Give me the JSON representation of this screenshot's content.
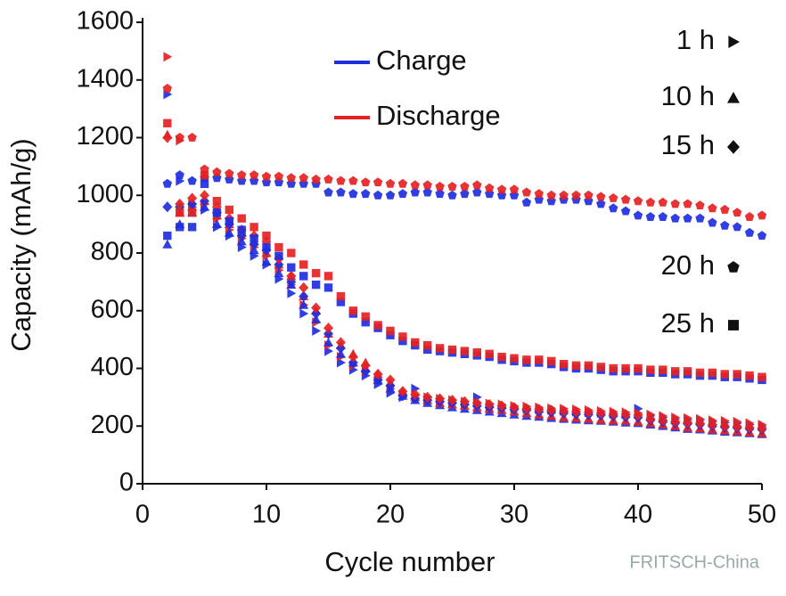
{
  "chart_data": {
    "type": "scatter",
    "xlabel": "Cycle number",
    "ylabel": "Capacity (mAh/g)",
    "xlim": [
      0,
      50
    ],
    "xticks": [
      0,
      10,
      20,
      30,
      40,
      50
    ],
    "ylim": [
      0,
      1600
    ],
    "yticks": [
      0,
      200,
      400,
      600,
      800,
      1000,
      1200,
      1400,
      1600
    ],
    "watermark": "FRITSCH-China",
    "modes": [
      {
        "name": "Charge",
        "color": "#1f2fe0"
      },
      {
        "name": "Discharge",
        "color": "#e52222"
      }
    ],
    "x": [
      2,
      3,
      4,
      5,
      6,
      7,
      8,
      9,
      10,
      11,
      12,
      13,
      14,
      15,
      16,
      17,
      18,
      19,
      20,
      21,
      22,
      23,
      24,
      25,
      26,
      27,
      28,
      29,
      30,
      31,
      32,
      33,
      34,
      35,
      36,
      37,
      38,
      39,
      40,
      41,
      42,
      43,
      44,
      45,
      46,
      47,
      48,
      49,
      50
    ],
    "series": [
      {
        "name": "1 h",
        "marker": "triangle-right",
        "values": [
          [
            1350,
            1050,
            960,
            950,
            890,
            860,
            820,
            790,
            760,
            710,
            660,
            590,
            530,
            460,
            420,
            395,
            375,
            345,
            315,
            300,
            330,
            290,
            285,
            280,
            275,
            300,
            268,
            265,
            262,
            260,
            258,
            255,
            252,
            250,
            248,
            245,
            242,
            240,
            260,
            235,
            230,
            225,
            222,
            220,
            215,
            212,
            210,
            205,
            200
          ],
          [
            1480,
            1190,
            970,
            970,
            920,
            880,
            850,
            820,
            790,
            740,
            690,
            620,
            560,
            480,
            440,
            410,
            390,
            360,
            330,
            310,
            305,
            300,
            295,
            290,
            285,
            280,
            278,
            275,
            270,
            268,
            265,
            262,
            260,
            258,
            255,
            252,
            250,
            248,
            245,
            240,
            235,
            230,
            228,
            225,
            220,
            218,
            215,
            210,
            205
          ]
        ]
      },
      {
        "name": "10 h",
        "marker": "triangle-up",
        "values": [
          [
            830,
            900,
            940,
            960,
            900,
            870,
            840,
            810,
            770,
            730,
            690,
            620,
            570,
            490,
            450,
            420,
            400,
            360,
            330,
            305,
            290,
            280,
            272,
            265,
            260,
            255,
            250,
            245,
            240,
            235,
            232,
            228,
            225,
            222,
            220,
            218,
            215,
            212,
            210,
            205,
            200,
            195,
            190,
            188,
            184,
            180,
            178,
            175,
            172
          ],
          [
            1210,
            940,
            960,
            980,
            930,
            900,
            870,
            840,
            800,
            760,
            720,
            650,
            600,
            520,
            480,
            450,
            420,
            380,
            350,
            320,
            300,
            290,
            280,
            275,
            270,
            265,
            260,
            255,
            250,
            245,
            240,
            235,
            230,
            228,
            225,
            222,
            220,
            218,
            215,
            210,
            205,
            200,
            195,
            192,
            188,
            185,
            182,
            178,
            175
          ]
        ]
      },
      {
        "name": "15 h",
        "marker": "diamond",
        "values": [
          [
            960,
            960,
            970,
            980,
            940,
            900,
            860,
            830,
            810,
            760,
            700,
            650,
            590,
            520,
            470,
            420,
            390,
            360,
            340,
            305,
            295,
            290,
            285,
            280,
            275,
            270,
            265,
            262,
            258,
            255,
            250,
            248,
            245,
            242,
            240,
            238,
            235,
            232,
            230,
            220,
            215,
            210,
            208,
            205,
            200,
            196,
            194,
            190,
            188
          ],
          [
            1200,
            970,
            990,
            1000,
            960,
            920,
            880,
            860,
            840,
            780,
            720,
            680,
            610,
            540,
            490,
            440,
            410,
            380,
            360,
            320,
            310,
            300,
            295,
            290,
            285,
            280,
            275,
            270,
            265,
            260,
            258,
            255,
            252,
            250,
            248,
            245,
            242,
            240,
            238,
            225,
            220,
            215,
            212,
            210,
            205,
            200,
            198,
            195,
            192
          ]
        ]
      },
      {
        "name": "20 h",
        "marker": "pentagon",
        "values": [
          [
            1040,
            1070,
            1050,
            1060,
            1060,
            1055,
            1050,
            1050,
            1045,
            1045,
            1040,
            1040,
            1040,
            1010,
            1010,
            1005,
            1005,
            1000,
            1000,
            1005,
            1010,
            1010,
            1005,
            1000,
            1005,
            1010,
            1005,
            1000,
            1000,
            975,
            985,
            980,
            985,
            985,
            980,
            970,
            955,
            945,
            930,
            925,
            925,
            920,
            920,
            920,
            905,
            895,
            890,
            870,
            860
          ],
          [
            1370,
            1200,
            1200,
            1090,
            1080,
            1075,
            1070,
            1070,
            1065,
            1065,
            1060,
            1060,
            1055,
            1055,
            1050,
            1050,
            1045,
            1045,
            1040,
            1040,
            1035,
            1035,
            1030,
            1030,
            1030,
            1035,
            1025,
            1020,
            1020,
            1010,
            1005,
            1000,
            1000,
            1000,
            1000,
            995,
            990,
            985,
            980,
            975,
            975,
            970,
            970,
            965,
            955,
            950,
            940,
            925,
            930
          ]
        ]
      },
      {
        "name": "25 h",
        "marker": "square",
        "values": [
          [
            860,
            890,
            890,
            1040,
            940,
            910,
            880,
            850,
            820,
            790,
            750,
            720,
            690,
            680,
            630,
            590,
            560,
            540,
            515,
            495,
            480,
            465,
            460,
            455,
            450,
            445,
            440,
            430,
            425,
            420,
            420,
            415,
            405,
            400,
            400,
            395,
            390,
            390,
            390,
            385,
            385,
            380,
            380,
            375,
            375,
            370,
            370,
            365,
            360
          ],
          [
            1250,
            940,
            940,
            1070,
            980,
            950,
            920,
            890,
            860,
            820,
            800,
            760,
            730,
            720,
            650,
            600,
            580,
            550,
            530,
            510,
            490,
            480,
            470,
            465,
            460,
            455,
            450,
            440,
            435,
            430,
            430,
            425,
            415,
            410,
            410,
            405,
            400,
            400,
            400,
            395,
            395,
            390,
            390,
            385,
            385,
            380,
            380,
            375,
            370
          ]
        ]
      }
    ]
  }
}
